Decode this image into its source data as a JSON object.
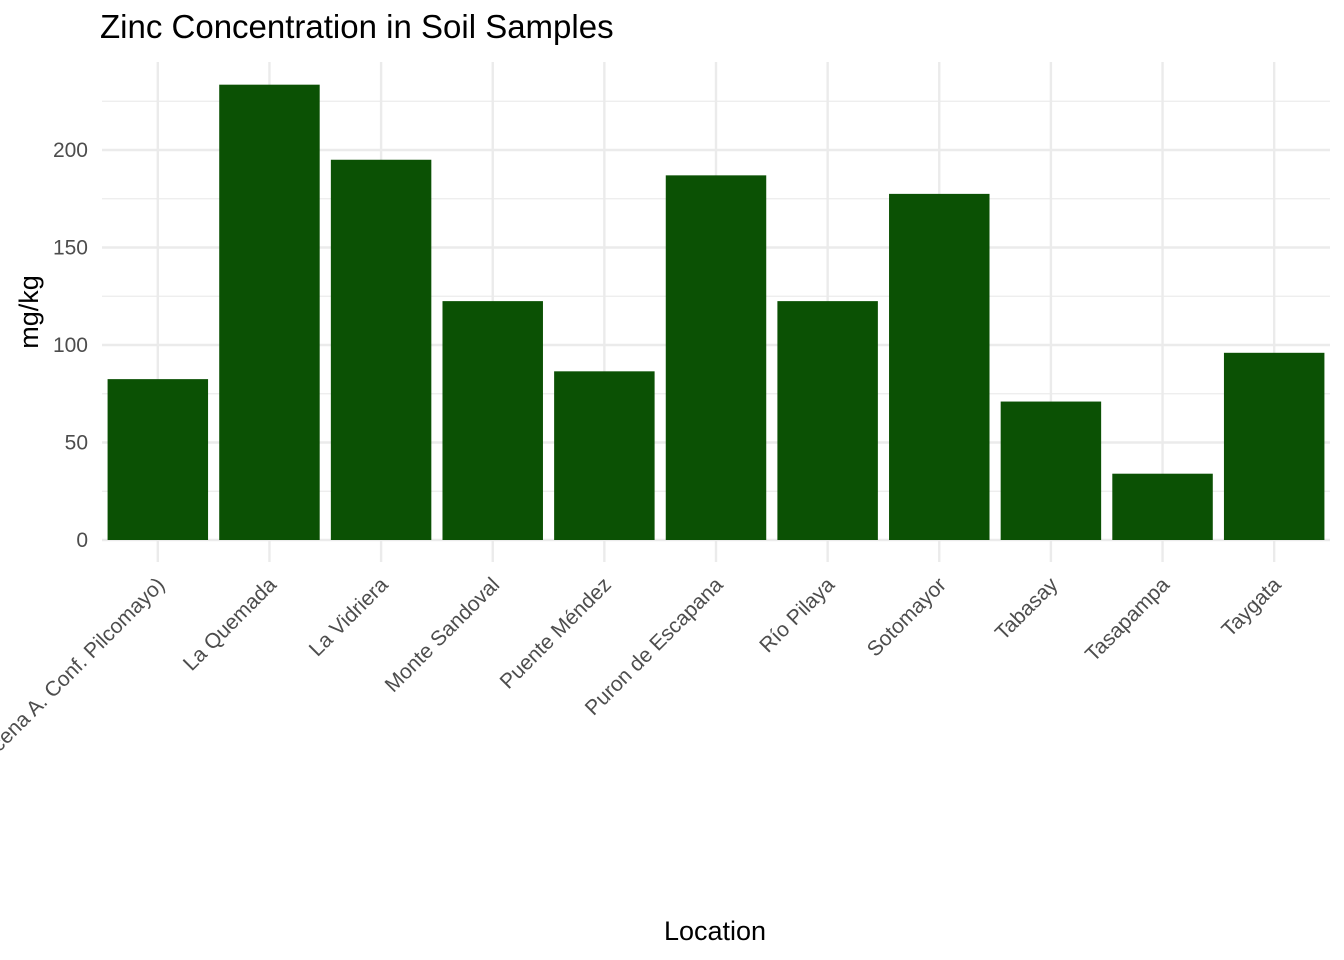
{
  "chart_data": {
    "type": "bar",
    "title": "Zinc Concentration in Soil Samples",
    "xlabel": "Location",
    "ylabel": "mg/kg",
    "categories": [
      "(Cabecena A. Conf. Pilcomayo)",
      "La Quemada",
      "La Vidriera",
      "Monte Sandoval",
      "Puente Méndez",
      "Puron de Escapana",
      "Río Pilaya",
      "Sotomayor",
      "Tabasay",
      "Tasapampa",
      "Taygata"
    ],
    "values": [
      82.5,
      233.5,
      195,
      122.5,
      86.5,
      187,
      122.5,
      177.5,
      71,
      34,
      96
    ],
    "ylim": [
      0,
      245
    ],
    "yticks": [
      0,
      50,
      100,
      150,
      200
    ],
    "grid": true,
    "legend": "none",
    "bar_color": "#0b5104",
    "grid_color": "#ebebeb"
  }
}
